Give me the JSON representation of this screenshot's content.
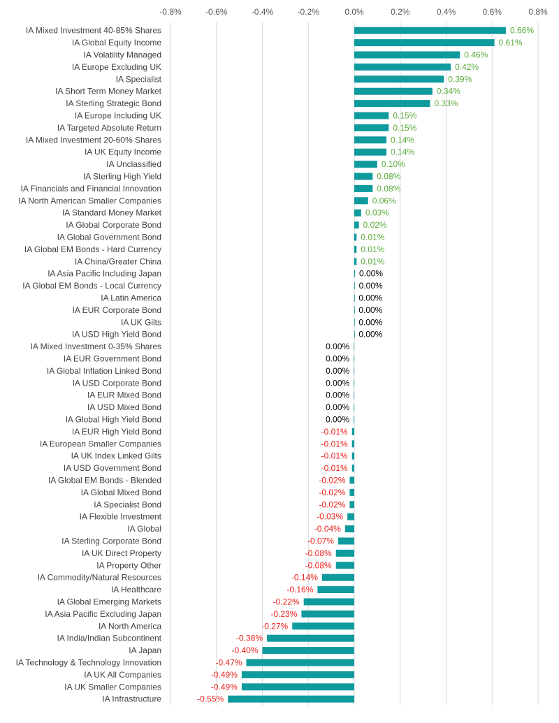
{
  "chart_data": {
    "type": "bar",
    "orientation": "horizontal",
    "title": "",
    "xlabel": "",
    "ylabel": "",
    "xlim": [
      -0.8,
      0.8
    ],
    "x_ticks": [
      "-0.8%",
      "-0.6%",
      "-0.4%",
      "-0.2%",
      "0.0%",
      "0.2%",
      "0.4%",
      "0.6%",
      "0.8%"
    ],
    "x_tick_values": [
      -0.8,
      -0.6,
      -0.4,
      -0.2,
      0.0,
      0.2,
      0.4,
      0.6,
      0.8
    ],
    "axis_position": "top",
    "grid": true,
    "legend": "none",
    "colors": {
      "bar": "#0f9a9e",
      "positive_label": "#5aab3c",
      "negative_label": "#e8211d",
      "zero_label": "#000000",
      "gridline": "#d9d9d9"
    },
    "categories": [
      "IA Mixed Investment 40-85% Shares",
      "IA Global Equity Income",
      "IA Volatility Managed",
      "IA Europe Excluding UK",
      "IA Specialist",
      "IA Short Term Money Market",
      "IA Sterling Strategic Bond",
      "IA Europe Including UK",
      "IA Targeted Absolute Return",
      "IA Mixed Investment 20-60% Shares",
      "IA UK Equity Income",
      "IA Unclassified",
      "IA Sterling High Yield",
      "IA Financials and Financial Innovation",
      "IA North American Smaller Companies",
      "IA Standard Money Market",
      "IA Global Corporate Bond",
      "IA Global Government Bond",
      "IA Global EM Bonds - Hard Currency",
      "IA China/Greater China",
      "IA Asia Pacific Including Japan",
      "IA Global EM Bonds - Local Currency",
      "IA Latin America",
      "IA EUR Corporate Bond",
      "IA UK Gilts",
      "IA USD High Yield Bond",
      "IA Mixed Investment 0-35% Shares",
      "IA EUR Government Bond",
      "IA Global Inflation Linked Bond",
      "IA USD Corporate Bond",
      "IA EUR Mixed Bond",
      "IA USD Mixed Bond",
      "IA Global High Yield Bond",
      "IA EUR High Yield Bond",
      "IA European Smaller Companies",
      "IA UK Index Linked Gilts",
      "IA USD Government Bond",
      "IA Global EM Bonds - Blended",
      "IA Global Mixed Bond",
      "IA Specialist Bond",
      "IA Flexible Investment",
      "IA Global",
      "IA Sterling Corporate Bond",
      "IA UK Direct Property",
      "IA Property Other",
      "IA Commodity/Natural Resources",
      "IA Healthcare",
      "IA Global Emerging Markets",
      "IA Asia Pacific Excluding Japan",
      "IA North America",
      "IA India/Indian Subcontinent",
      "IA Japan",
      "IA Technology & Technology Innovation",
      "IA UK All Companies",
      "IA UK Smaller Companies",
      "IA Infrastructure"
    ],
    "values": [
      0.66,
      0.61,
      0.46,
      0.42,
      0.39,
      0.34,
      0.33,
      0.15,
      0.15,
      0.14,
      0.14,
      0.1,
      0.08,
      0.08,
      0.06,
      0.03,
      0.02,
      0.01,
      0.01,
      0.01,
      0.003,
      0.002,
      0.001,
      0.001,
      0.001,
      0.001,
      -0.001,
      -0.001,
      -0.001,
      -0.002,
      -0.002,
      -0.002,
      -0.003,
      -0.01,
      -0.01,
      -0.01,
      -0.01,
      -0.02,
      -0.02,
      -0.02,
      -0.03,
      -0.04,
      -0.07,
      -0.08,
      -0.08,
      -0.14,
      -0.16,
      -0.22,
      -0.23,
      -0.27,
      -0.38,
      -0.4,
      -0.47,
      -0.49,
      -0.49,
      -0.55
    ],
    "data_labels": [
      "0.66%",
      "0.61%",
      "0.46%",
      "0.42%",
      "0.39%",
      "0.34%",
      "0.33%",
      "0.15%",
      "0.15%",
      "0.14%",
      "0.14%",
      "0.10%",
      "0.08%",
      "0.08%",
      "0.06%",
      "0.03%",
      "0.02%",
      "0.01%",
      "0.01%",
      "0.01%",
      "0.00%",
      "0.00%",
      "0.00%",
      "0.00%",
      "0.00%",
      "0.00%",
      "0.00%",
      "0.00%",
      "0.00%",
      "0.00%",
      "0.00%",
      "0.00%",
      "0.00%",
      "-0.01%",
      "-0.01%",
      "-0.01%",
      "-0.01%",
      "-0.02%",
      "-0.02%",
      "-0.02%",
      "-0.03%",
      "-0.04%",
      "-0.07%",
      "-0.08%",
      "-0.08%",
      "-0.14%",
      "-0.16%",
      "-0.22%",
      "-0.23%",
      "-0.27%",
      "-0.38%",
      "-0.40%",
      "-0.47%",
      "-0.49%",
      "-0.49%",
      "-0.55%"
    ]
  }
}
